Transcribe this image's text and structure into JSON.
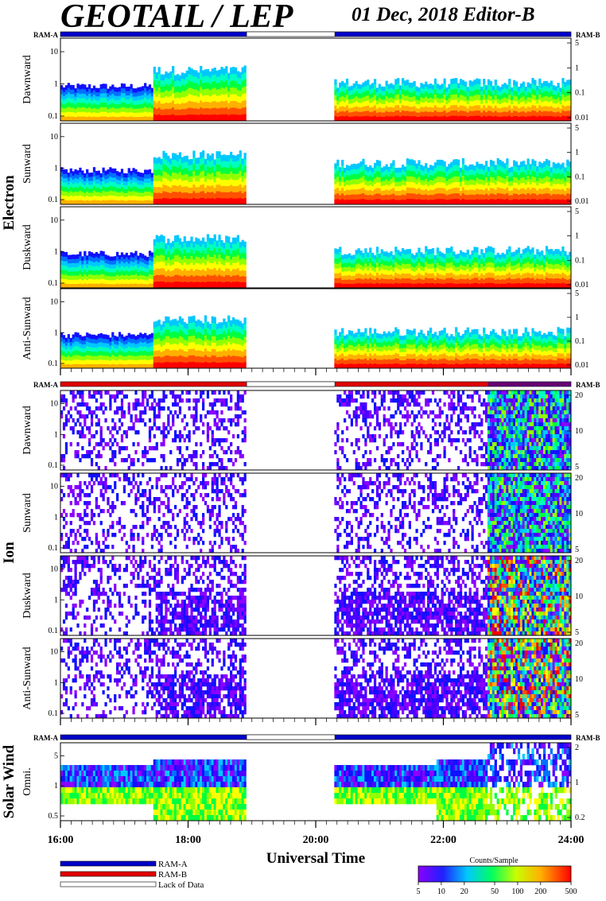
{
  "header": {
    "title": "GEOTAIL / LEP",
    "date_editor": "01 Dec, 2018   Editor-B"
  },
  "colors": {
    "ram_a": "#0000c8",
    "ram_b": "#e00000",
    "lack_of_data": "#ffffff"
  },
  "chart_data": [
    {
      "type": "heatmap",
      "group": "Electron",
      "panels": [
        "Dawnward",
        "Sunward",
        "Duskward",
        "Anti-Sunward"
      ],
      "ram_bar": {
        "left_label": "RAM-A",
        "right_label": "RAM-B"
      },
      "left_axis": {
        "scale": "log",
        "ticks": [
          "0.1",
          "1",
          "10"
        ]
      },
      "right_axis": {
        "scale": "log",
        "ticks": [
          "0.01",
          "0.1",
          "1",
          "5"
        ]
      },
      "data_gaps": [
        [
          "18:55",
          "20:18"
        ]
      ]
    },
    {
      "type": "heatmap",
      "group": "Ion",
      "panels": [
        "Dawnward",
        "Sunward",
        "Duskward",
        "Anti-Sunward"
      ],
      "ram_bar": {
        "left_label": "RAM-A",
        "right_label": "RAM-B"
      },
      "left_axis": {
        "scale": "log",
        "ticks": [
          "0.1",
          "1",
          "10"
        ]
      },
      "right_axis": {
        "scale": "linear",
        "ticks": [
          "5",
          "10",
          "20"
        ]
      },
      "data_gaps": [
        [
          "18:55",
          "20:18"
        ]
      ]
    },
    {
      "type": "heatmap",
      "group": "Solar Wind",
      "panels": [
        "Omni."
      ],
      "ram_bar": {
        "left_label": "RAM-A",
        "right_label": "RAM-B"
      },
      "left_axis": {
        "scale": "log",
        "ticks": [
          "0.5",
          "1",
          "5"
        ]
      },
      "right_axis": {
        "scale": "log",
        "ticks": [
          "0.2",
          "1",
          "2"
        ]
      },
      "data_gaps": [
        [
          "18:55",
          "20:18"
        ]
      ]
    }
  ],
  "time_axis": {
    "label": "Universal Time",
    "range": [
      "16:00",
      "24:00"
    ],
    "major_ticks": [
      "16:00",
      "18:00",
      "20:00",
      "22:00",
      "24:00"
    ]
  },
  "legend": {
    "items": [
      {
        "label": "RAM-A",
        "color": "#0000c8"
      },
      {
        "label": "RAM-B",
        "color": "#e00000"
      },
      {
        "label": "Lack of Data",
        "color": "#ffffff"
      }
    ]
  },
  "colorbar": {
    "title": "Counts/Sample",
    "scale": "log",
    "range": [
      5,
      500
    ],
    "ticks": [
      "5",
      "10",
      "20",
      "50",
      "100",
      "200",
      "500"
    ]
  }
}
